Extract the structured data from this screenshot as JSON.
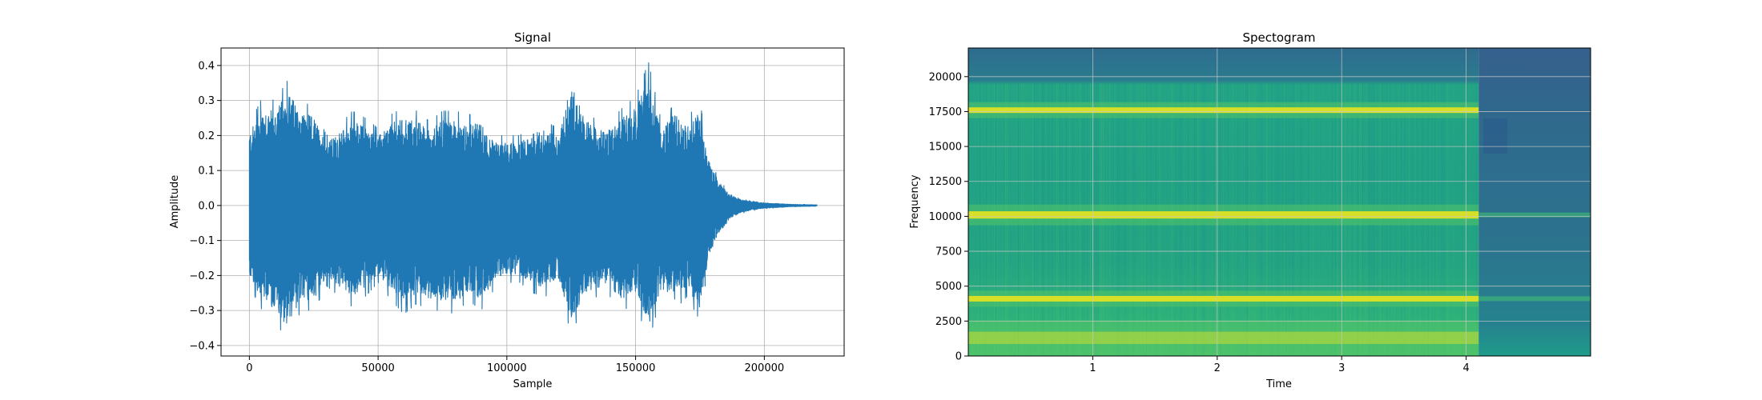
{
  "chart_data": [
    {
      "type": "line",
      "title": "Signal",
      "xlabel": "Sample",
      "ylabel": "Amplitude",
      "xlim": [
        -11000,
        231000
      ],
      "ylim": [
        -0.43,
        0.45
      ],
      "grid": true,
      "color": "#1f77b4",
      "x_ticks": [
        0,
        50000,
        100000,
        150000,
        200000
      ],
      "x_tick_labels": [
        "0",
        "50000",
        "100000",
        "150000",
        "200000"
      ],
      "y_ticks": [
        -0.4,
        -0.3,
        -0.2,
        -0.1,
        0.0,
        0.1,
        0.2,
        0.3,
        0.4
      ],
      "y_tick_labels": [
        "−0.4",
        "−0.3",
        "−0.2",
        "−0.1",
        "0.0",
        "0.1",
        "0.2",
        "0.3",
        "0.4"
      ],
      "sample_range": [
        0,
        220500
      ],
      "envelope": {
        "x": [
          0,
          5000,
          10000,
          15000,
          20000,
          25000,
          30000,
          35000,
          40000,
          45000,
          50000,
          55000,
          60000,
          65000,
          70000,
          75000,
          80000,
          85000,
          90000,
          95000,
          100000,
          105000,
          110000,
          115000,
          120000,
          125000,
          130000,
          135000,
          140000,
          145000,
          150000,
          155000,
          160000,
          165000,
          170000,
          175000,
          178000,
          182000,
          186000,
          190000,
          195000,
          200000,
          210000,
          220500
        ],
        "max": [
          0.23,
          0.31,
          0.3,
          0.36,
          0.3,
          0.28,
          0.2,
          0.23,
          0.27,
          0.25,
          0.22,
          0.26,
          0.28,
          0.27,
          0.24,
          0.27,
          0.27,
          0.26,
          0.26,
          0.2,
          0.2,
          0.2,
          0.23,
          0.24,
          0.22,
          0.39,
          0.28,
          0.24,
          0.24,
          0.28,
          0.31,
          0.41,
          0.24,
          0.29,
          0.25,
          0.3,
          0.15,
          0.08,
          0.04,
          0.02,
          0.013,
          0.008,
          0.004,
          0.002
        ],
        "min": [
          -0.23,
          -0.3,
          -0.33,
          -0.39,
          -0.3,
          -0.3,
          -0.23,
          -0.26,
          -0.29,
          -0.26,
          -0.22,
          -0.27,
          -0.31,
          -0.28,
          -0.3,
          -0.3,
          -0.31,
          -0.27,
          -0.3,
          -0.24,
          -0.22,
          -0.22,
          -0.25,
          -0.26,
          -0.23,
          -0.37,
          -0.28,
          -0.26,
          -0.26,
          -0.3,
          -0.28,
          -0.39,
          -0.26,
          -0.3,
          -0.26,
          -0.33,
          -0.18,
          -0.09,
          -0.05,
          -0.025,
          -0.015,
          -0.009,
          -0.004,
          -0.002
        ]
      }
    },
    {
      "type": "heatmap",
      "title": "Spectogram",
      "xlabel": "Time",
      "ylabel": "Frequency",
      "xlim": [
        0,
        5.0
      ],
      "ylim": [
        0,
        22050
      ],
      "grid": true,
      "colormap": "viridis",
      "x_ticks": [
        1,
        2,
        3,
        4
      ],
      "x_tick_labels": [
        "1",
        "2",
        "3",
        "4"
      ],
      "y_ticks": [
        0,
        2500,
        5000,
        7500,
        10000,
        12500,
        15000,
        17500,
        20000
      ],
      "y_tick_labels": [
        "0",
        "2500",
        "5000",
        "7500",
        "10000",
        "12500",
        "15000",
        "17500",
        "20000"
      ],
      "signal_end_time": 4.1,
      "bright_bands_hz": [
        1300,
        4100,
        10100,
        17600
      ],
      "colors": {
        "low": "#2d6e8e",
        "mid": "#23a383",
        "high": "#54c567",
        "peak": "#e8e41e",
        "top_band": "#3b6d8d"
      }
    }
  ]
}
